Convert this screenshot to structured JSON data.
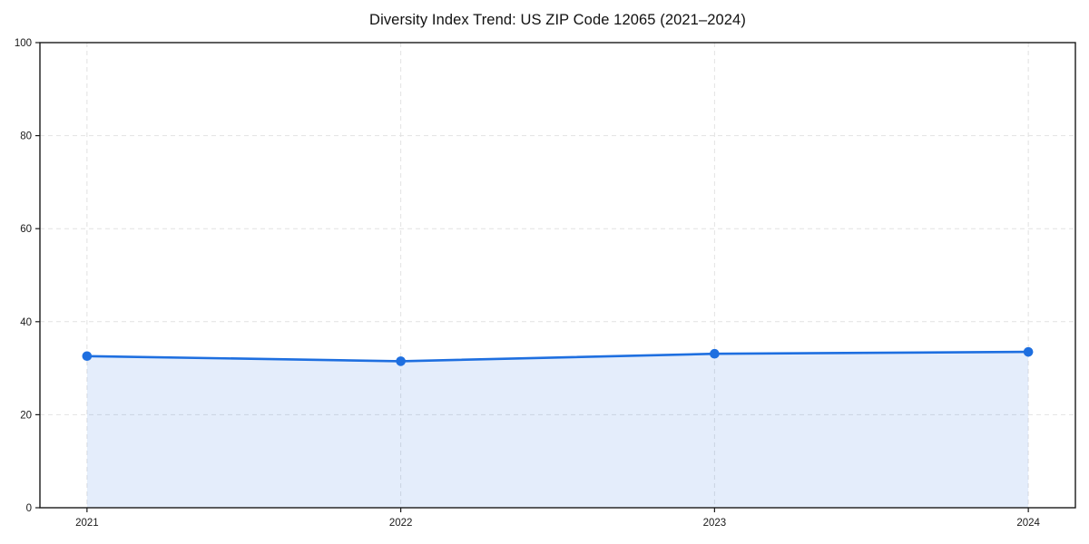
{
  "title": "Diversity Index Trend: US ZIP Code 12065 (2021–2024)",
  "chart_data": {
    "type": "line",
    "title": "Diversity Index Trend: US ZIP Code 12065 (2021–2024)",
    "categories": [
      "2021",
      "2022",
      "2023",
      "2024"
    ],
    "x": [
      2021,
      2022,
      2023,
      2024
    ],
    "series": [
      {
        "name": "Diversity Index",
        "values": [
          32.6,
          31.5,
          33.1,
          33.5
        ]
      }
    ],
    "xlabel": "",
    "ylabel": "",
    "ylim": [
      0,
      100
    ],
    "yticks": [
      0,
      20,
      40,
      60,
      80,
      100
    ],
    "grid": true,
    "grid_style": "dashed",
    "legend_position": "none",
    "area_fill": true,
    "marker": "circle",
    "colors": {
      "line": "#1e6fe0",
      "marker": "#1e6fe0",
      "area_fill": "rgba(30,111,224,0.12)",
      "grid": "#e2e2e2",
      "axis": "#1a1a1a",
      "background": "#ffffff",
      "title_text": "#111111",
      "tick_text": "#1a1a1a"
    }
  }
}
